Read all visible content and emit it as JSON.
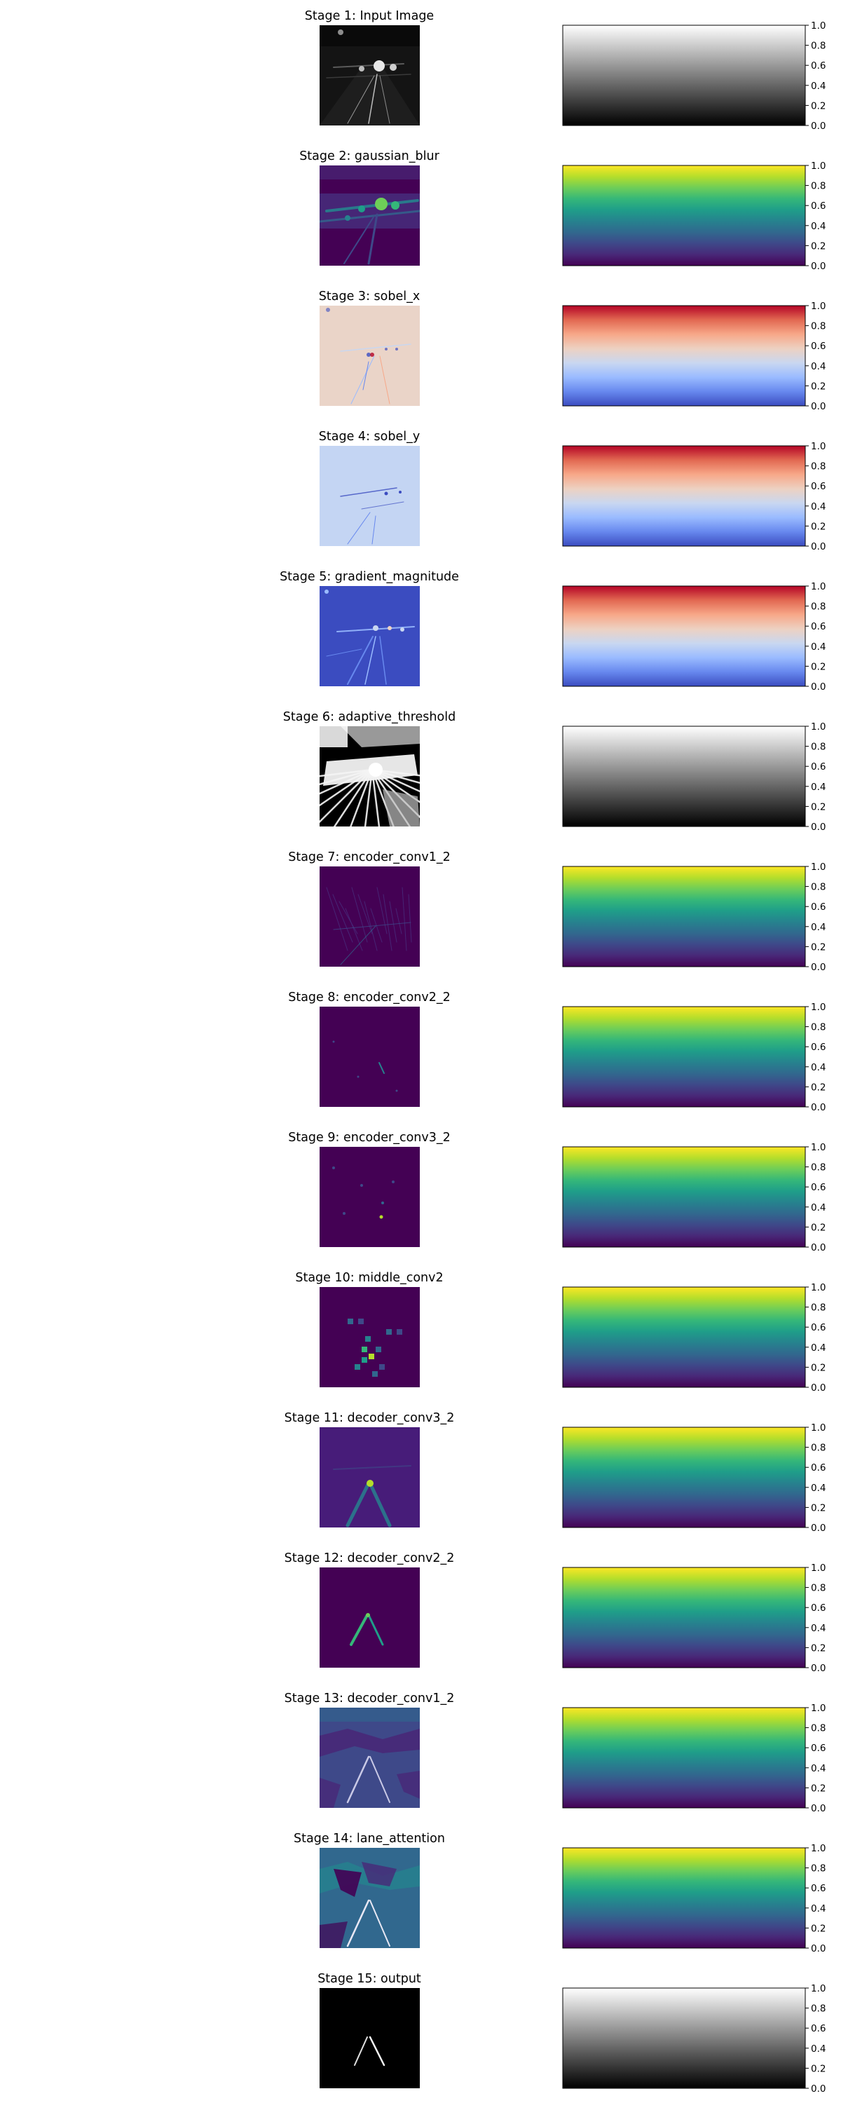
{
  "stages": [
    {
      "title": "Stage 1: Input Image",
      "cmap": "gray",
      "visual": "road-gray"
    },
    {
      "title": "Stage 2: gaussian_blur",
      "cmap": "viridis",
      "visual": "road-viridis"
    },
    {
      "title": "Stage 3: sobel_x",
      "cmap": "coolwarm",
      "visual": "sobel-x"
    },
    {
      "title": "Stage 4: sobel_y",
      "cmap": "coolwarm",
      "visual": "sobel-y"
    },
    {
      "title": "Stage 5: gradient_magnitude",
      "cmap": "coolwarm",
      "visual": "grad-mag"
    },
    {
      "title": "Stage 6: adaptive_threshold",
      "cmap": "gray",
      "visual": "threshold"
    },
    {
      "title": "Stage 7: encoder_conv1_2",
      "cmap": "viridis",
      "visual": "enc1"
    },
    {
      "title": "Stage 8: encoder_conv2_2",
      "cmap": "viridis",
      "visual": "enc2"
    },
    {
      "title": "Stage 9: encoder_conv3_2",
      "cmap": "viridis",
      "visual": "enc3"
    },
    {
      "title": "Stage 10: middle_conv2",
      "cmap": "viridis",
      "visual": "middle"
    },
    {
      "title": "Stage 11: decoder_conv3_2",
      "cmap": "viridis",
      "visual": "dec3"
    },
    {
      "title": "Stage 12: decoder_conv2_2",
      "cmap": "viridis",
      "visual": "dec2"
    },
    {
      "title": "Stage 13: decoder_conv1_2",
      "cmap": "viridis",
      "visual": "dec1"
    },
    {
      "title": "Stage 14: lane_attention",
      "cmap": "viridis",
      "visual": "attention"
    },
    {
      "title": "Stage 15: output",
      "cmap": "gray",
      "visual": "output"
    }
  ],
  "colorbar_ticks": [
    "0.0",
    "0.2",
    "0.4",
    "0.6",
    "0.8",
    "1.0"
  ],
  "colormaps": {
    "gray": [
      "#000000",
      "#ffffff"
    ],
    "viridis": [
      "#440154",
      "#482878",
      "#3e4989",
      "#31688e",
      "#26828e",
      "#1f9e89",
      "#35b779",
      "#6ece58",
      "#b5de2b",
      "#fde725"
    ],
    "coolwarm": [
      "#3b4cc0",
      "#6788ee",
      "#9abbff",
      "#c9d7f0",
      "#edd1c2",
      "#f7a889",
      "#e26952",
      "#b40426"
    ]
  },
  "chart_data": {
    "type": "heatmap",
    "panels": [
      "Stage 1: Input Image",
      "Stage 2: gaussian_blur",
      "Stage 3: sobel_x",
      "Stage 4: sobel_y",
      "Stage 5: gradient_magnitude",
      "Stage 6: adaptive_threshold",
      "Stage 7: encoder_conv1_2",
      "Stage 8: encoder_conv2_2",
      "Stage 9: encoder_conv3_2",
      "Stage 10: middle_conv2",
      "Stage 11: decoder_conv3_2",
      "Stage 12: decoder_conv2_2",
      "Stage 13: decoder_conv1_2",
      "Stage 14: lane_attention",
      "Stage 15: output"
    ],
    "colorbar_range": [
      0.0,
      1.0
    ],
    "colorbar_ticks": [
      0.0,
      0.2,
      0.4,
      0.6,
      0.8,
      1.0
    ],
    "grid": false
  }
}
